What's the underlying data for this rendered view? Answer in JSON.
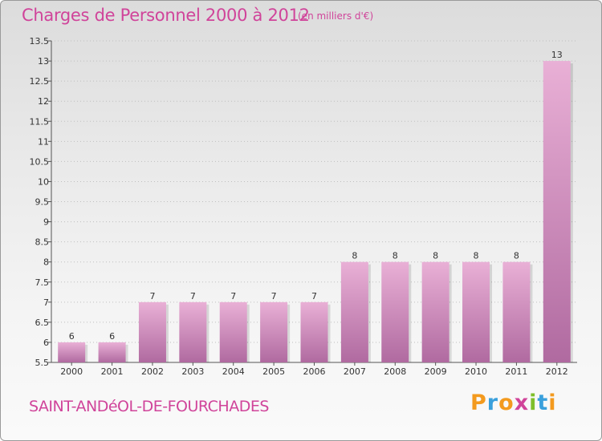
{
  "title": "Charges de Personnel 2000 à 2012",
  "unit": "(en milliers d'€)",
  "commune": "SAINT-ANDéOL-DE-FOURCHADES",
  "logo": {
    "text": "Proxiti",
    "letter_colors": [
      "#f39a1e",
      "#3aa0dc",
      "#f39a1e",
      "#d0449a",
      "#7fbf2a",
      "#3aa0dc",
      "#f39a1e"
    ]
  },
  "colors": {
    "title": "#d0449a",
    "bar_top": "#e9b0d6",
    "bar_bottom": "#b06aa0",
    "grid": "#bfbfbf"
  },
  "chart_data": {
    "type": "bar",
    "categories": [
      "2000",
      "2001",
      "2002",
      "2003",
      "2004",
      "2005",
      "2006",
      "2007",
      "2008",
      "2009",
      "2010",
      "2011",
      "2012"
    ],
    "values": [
      6,
      6,
      7,
      7,
      7,
      7,
      7,
      8,
      8,
      8,
      8,
      8,
      13
    ],
    "data_labels": [
      "6",
      "6",
      "7",
      "7",
      "7",
      "7",
      "7",
      "8",
      "8",
      "8",
      "8",
      "8",
      "13"
    ],
    "ylim": [
      5.5,
      13.5
    ],
    "yticks": [
      5.5,
      6,
      6.5,
      7,
      7.5,
      8,
      8.5,
      9,
      9.5,
      10,
      10.5,
      11,
      11.5,
      12,
      12.5,
      13,
      13.5
    ],
    "ytick_labels": [
      "5.5",
      "6",
      "6.5",
      "7",
      "7.5",
      "8",
      "8.5",
      "9",
      "9.5",
      "10",
      "10.5",
      "11",
      "11.5",
      "12",
      "12.5",
      "13",
      "13.5"
    ],
    "grid": true,
    "xlabel": "",
    "ylabel": ""
  }
}
